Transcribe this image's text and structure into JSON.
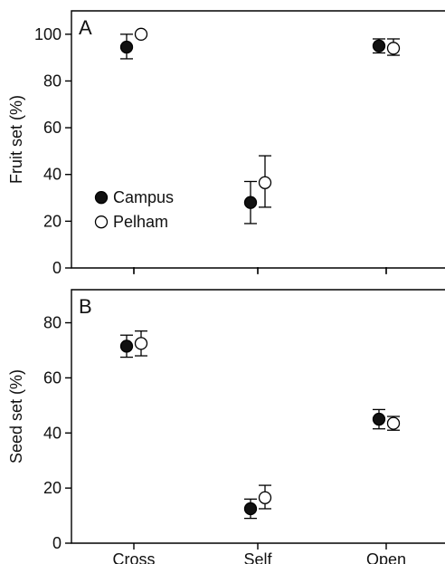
{
  "chart_data": [
    {
      "panel": "A",
      "type": "scatter",
      "categories": [
        "Cross",
        "Self",
        "Open"
      ],
      "ylabel": "Fruit set (%)",
      "xlabel": "",
      "ylim": [
        0,
        110
      ],
      "yticks": [
        0,
        20,
        40,
        60,
        80,
        100
      ],
      "grid": false,
      "legend_position": "lower-left",
      "legend": [
        {
          "name": "Campus",
          "marker": "filled-circle"
        },
        {
          "name": "Pelham",
          "marker": "open-circle"
        }
      ],
      "series": [
        {
          "name": "Campus",
          "fill": "#111111",
          "values": [
            94.5,
            28,
            95
          ],
          "err_low": [
            89.5,
            19,
            92
          ],
          "err_high": [
            100,
            37,
            98
          ]
        },
        {
          "name": "Pelham",
          "fill": "#ffffff",
          "values": [
            100,
            36.5,
            94
          ],
          "err_low": [
            100,
            26,
            91
          ],
          "err_high": [
            100,
            48,
            98
          ]
        }
      ]
    },
    {
      "panel": "B",
      "type": "scatter",
      "categories": [
        "Cross",
        "Self",
        "Open"
      ],
      "ylabel": "Seed set (%)",
      "xlabel": "",
      "ylim": [
        0,
        92
      ],
      "yticks": [
        0,
        20,
        40,
        60,
        80
      ],
      "grid": false,
      "series": [
        {
          "name": "Campus",
          "fill": "#111111",
          "values": [
            71.5,
            12.5,
            45
          ],
          "err_low": [
            67.5,
            9,
            41.5
          ],
          "err_high": [
            75.5,
            16,
            48.5
          ]
        },
        {
          "name": "Pelham",
          "fill": "#ffffff",
          "values": [
            72.5,
            16.5,
            43.5
          ],
          "err_low": [
            68,
            12.5,
            41
          ],
          "err_high": [
            77,
            21,
            46
          ]
        }
      ]
    }
  ]
}
